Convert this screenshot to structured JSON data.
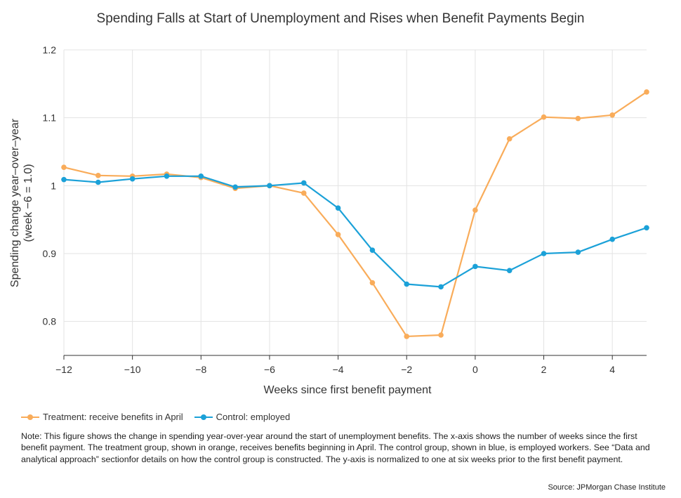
{
  "chart_data": {
    "type": "line",
    "title": "Spending Falls at Start of Unemployment and Rises when Benefit Payments Begin",
    "xlabel": "Weeks since first benefit payment",
    "ylabel": "Spending change year–over–year",
    "ylabel2": "(week −6 = 1.0)",
    "xlim": [
      -12,
      5
    ],
    "ylim": [
      0.75,
      1.2
    ],
    "x_ticks": [
      -12,
      -10,
      -8,
      -6,
      -4,
      -2,
      0,
      2,
      4
    ],
    "x_tick_labels": [
      "−12",
      "−10",
      "−8",
      "−6",
      "−4",
      "−2",
      "0",
      "2",
      "4"
    ],
    "y_ticks": [
      0.8,
      0.9,
      1.0,
      1.1,
      1.2
    ],
    "y_tick_labels": [
      "0.8",
      "0.9",
      "1",
      "1.1",
      "1.2"
    ],
    "x": [
      -12,
      -11,
      -10,
      -9,
      -8,
      -7,
      -6,
      -5,
      -4,
      -3,
      -2,
      -1,
      0,
      1,
      2,
      3,
      4,
      5
    ],
    "series": [
      {
        "name": "Treatment: receive benefits in April",
        "color": "#F9AC5A",
        "values": [
          1.027,
          1.015,
          1.014,
          1.017,
          1.012,
          0.996,
          1.0,
          0.989,
          0.928,
          0.857,
          0.778,
          0.78,
          0.964,
          1.069,
          1.101,
          1.099,
          1.104,
          1.138
        ]
      },
      {
        "name": "Control: employed",
        "color": "#1BA1D8",
        "values": [
          1.009,
          1.005,
          1.01,
          1.014,
          1.014,
          0.998,
          1.0,
          1.004,
          0.967,
          0.905,
          0.855,
          0.851,
          0.881,
          0.875,
          0.9,
          0.902,
          0.921,
          0.938
        ]
      }
    ],
    "grid": "vertical and horizontal, light gray",
    "legend": "bottom-left"
  },
  "note": "Note: This figure shows the change in spending year-over-year around the start of unemployment benefits. The x-axis shows the number of weeks since the first benefit payment. The treatment group, shown in orange, receives benefits beginning in April. The control group, shown in blue, is employed workers. See “Data and analytical approach” sectionfor details on how the control group is constructed. The y-axis is normalized to one at six weeks prior to the first benefit payment.",
  "source": "Source: JPMorgan Chase Institute"
}
